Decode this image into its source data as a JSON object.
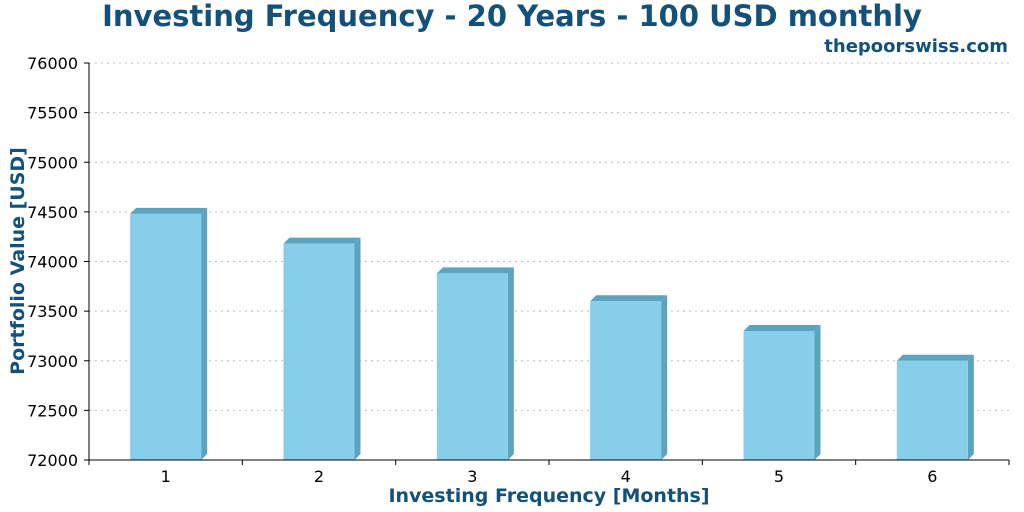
{
  "chart_data": {
    "type": "bar",
    "title": "Investing Frequency - 20 Years - 100 USD monthly",
    "watermark": "thepoorswiss.com",
    "xlabel": "Investing Frequency [Months]",
    "ylabel": "Portfolio Value [USD]",
    "categories": [
      "1",
      "2",
      "3",
      "4",
      "5",
      "6"
    ],
    "values": [
      74480,
      74180,
      73880,
      73600,
      73300,
      73000
    ],
    "ylim": [
      72000,
      76000
    ],
    "yticks": [
      "72000",
      "72500",
      "73000",
      "73500",
      "74000",
      "74500",
      "75000",
      "75500",
      "76000"
    ],
    "grid": true,
    "legend": "none",
    "colors": {
      "bar_front": "#87ceeb",
      "bar_side": "#5ba3bf",
      "title": "#13507a",
      "grid": "#bbbbbb"
    }
  }
}
